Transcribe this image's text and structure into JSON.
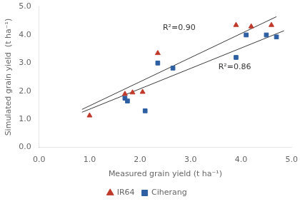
{
  "chart_data": {
    "type": "scatter",
    "xlabel": "Measured grain yield (t ha⁻¹)",
    "ylabel": "Simulated grain yield  (t ha⁻¹)",
    "series": [
      {
        "type": "line",
        "color": "#3a3a3a",
        "x": [
          0.85,
          4.7
        ],
        "y": [
          1.35,
          4.65
        ]
      },
      {
        "type": "line",
        "color": "#3a3a3a",
        "x": [
          0.85,
          4.85
        ],
        "y": [
          1.25,
          4.15
        ]
      },
      {
        "type": "scatter",
        "name": "IR64",
        "color": "#c0392b",
        "marker": "triangle",
        "x": [
          1.0,
          1.7,
          1.85,
          2.05,
          2.35,
          3.9,
          4.2,
          4.6
        ],
        "y": [
          1.13,
          1.9,
          1.95,
          1.97,
          3.35,
          4.35,
          4.3,
          4.35
        ]
      },
      {
        "type": "scatter",
        "name": "Ciherang",
        "color": "#2e5fa3",
        "marker": "square",
        "x": [
          1.7,
          1.75,
          2.1,
          2.35,
          2.65,
          3.9,
          4.1,
          4.5,
          4.7
        ],
        "y": [
          1.75,
          1.65,
          1.3,
          3.0,
          2.82,
          3.2,
          4.0,
          4.0,
          3.93
        ]
      }
    ],
    "annotations": [
      {
        "text": "R²=0.90",
        "x": 2.45,
        "y": 4.1
      },
      {
        "text": "R²=0.86",
        "x": 3.55,
        "y": 2.72
      }
    ],
    "xlim": [
      0.0,
      5.0
    ],
    "ylim": [
      0.0,
      5.0
    ],
    "xticks": [
      {
        "value": 0,
        "label": "0.0"
      },
      {
        "value": 1,
        "label": "1.0"
      },
      {
        "value": 2,
        "label": "2.0"
      },
      {
        "value": 3,
        "label": "3.0"
      },
      {
        "value": 4,
        "label": "4.0"
      },
      {
        "value": 5,
        "label": "5.0"
      }
    ],
    "yticks": [
      {
        "value": 0,
        "label": "0.0"
      },
      {
        "value": 1,
        "label": "1.0"
      },
      {
        "value": 2,
        "label": "2.0"
      },
      {
        "value": 3,
        "label": "3.0"
      },
      {
        "value": 4,
        "label": "4.0"
      },
      {
        "value": 5,
        "label": "5.0"
      }
    ],
    "grid": false,
    "legend": "bottom"
  }
}
